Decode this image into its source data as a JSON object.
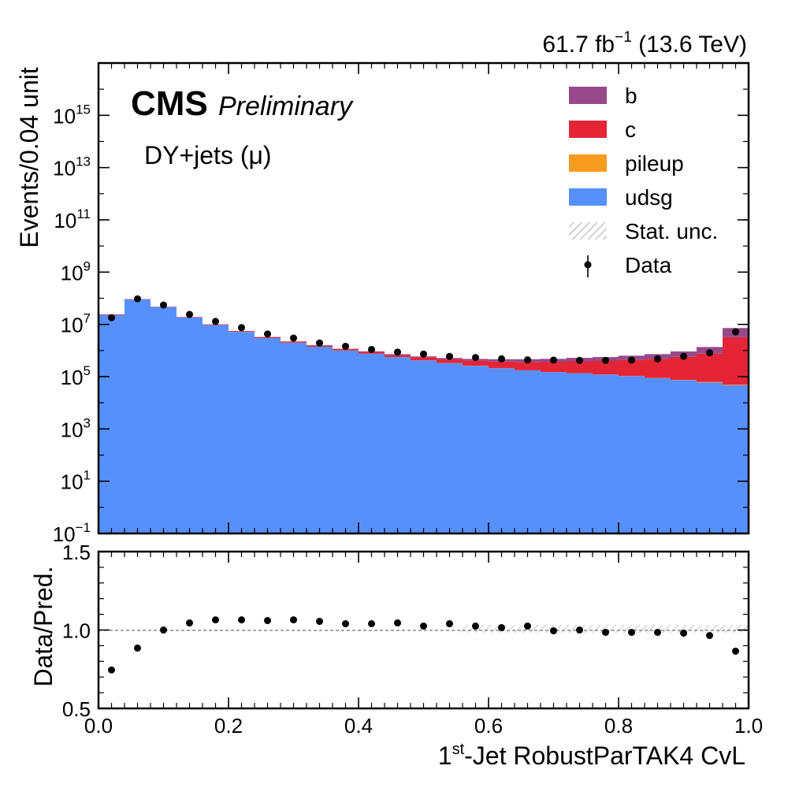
{
  "header": {
    "lumi_value": "61.7 fb",
    "lumi_exp": "−1",
    "energy": " (13.6 TeV)"
  },
  "labels": {
    "cms": "CMS",
    "preliminary": "Preliminary",
    "channel": "DY+jets (μ)",
    "ylabel_main": "Events/0.04 unit",
    "ylabel_ratio": "Data/Pred.",
    "xlabel_pre": "1",
    "xlabel_sup": "st",
    "xlabel_post": "-Jet RobustParTAK4 CvL"
  },
  "colors": {
    "b": "#964a8b",
    "c": "#e42536",
    "pileup": "#f89c20",
    "udsg": "#5790fc",
    "data": "#000000",
    "stat_unc": "#999999"
  },
  "legend": [
    {
      "key": "b",
      "label": "b",
      "kind": "fill"
    },
    {
      "key": "c",
      "label": "c",
      "kind": "fill"
    },
    {
      "key": "pileup",
      "label": "pileup",
      "kind": "fill"
    },
    {
      "key": "udsg",
      "label": "udsg",
      "kind": "fill"
    },
    {
      "key": "stat_unc",
      "label": "Stat. unc.",
      "kind": "hatch"
    },
    {
      "key": "data",
      "label": "Data",
      "kind": "point"
    }
  ],
  "chart_data": [
    {
      "type": "area",
      "subtype": "stacked-histogram",
      "xlim": [
        0,
        1
      ],
      "ylim": [
        0.1,
        1e+17
      ],
      "yscale": "log",
      "bin_width": 0.04,
      "bin_edges": [
        0,
        0.04,
        0.08,
        0.12,
        0.16,
        0.2,
        0.24,
        0.28,
        0.32,
        0.36,
        0.4,
        0.44,
        0.48,
        0.52,
        0.56,
        0.6,
        0.64,
        0.68,
        0.72,
        0.76,
        0.8,
        0.84,
        0.88,
        0.92,
        0.96,
        1.0
      ],
      "y_ticks": [
        {
          "value": 0.1,
          "base": "10",
          "exp": "−1"
        },
        {
          "value": 10,
          "base": "10",
          "exp": "1"
        },
        {
          "value": 1000,
          "base": "10",
          "exp": "3"
        },
        {
          "value": 100000,
          "base": "10",
          "exp": "5"
        },
        {
          "value": 10000000,
          "base": "10",
          "exp": "7"
        },
        {
          "value": 1000000000,
          "base": "10",
          "exp": "9"
        },
        {
          "value": 100000000000,
          "base": "10",
          "exp": "11"
        },
        {
          "value": 10000000000000,
          "base": "10",
          "exp": "13"
        },
        {
          "value": 1000000000000000,
          "base": "10",
          "exp": "15"
        }
      ],
      "series": [
        {
          "name": "udsg",
          "values": [
            23000000.0,
            90000000.0,
            46000000.0,
            18500000.0,
            9500000.0,
            5200000.0,
            3000000.0,
            2000000.0,
            1400000.0,
            1000000.0,
            760000.0,
            560000.0,
            420000.0,
            330000.0,
            260000.0,
            210000.0,
            175000.0,
            150000.0,
            135000.0,
            120000.0,
            105000.0,
            88000.0,
            73000.0,
            60000.0,
            47000.0
          ]
        },
        {
          "name": "pileup",
          "values": [
            100000.0,
            300000.0,
            180000.0,
            60000.0,
            30000.0,
            15000.0,
            9000.0,
            6000.0,
            4000.0,
            3000.0,
            2200.0,
            1800.0,
            1500.0,
            1300.0,
            1100.0,
            1000.0,
            900,
            900,
            900,
            900,
            1200.0,
            1600.0,
            2000.0,
            2500.0,
            2000.0
          ]
        },
        {
          "name": "c",
          "values": [
            1000000.0,
            2000000.0,
            1300000.0,
            700000.0,
            500000.0,
            350000.0,
            260000.0,
            200000.0,
            160000.0,
            140000.0,
            130000.0,
            125000.0,
            130000.0,
            135000.0,
            150000.0,
            170000.0,
            190000.0,
            210000.0,
            250000.0,
            280000.0,
            330000.0,
            390000.0,
            500000.0,
            700000.0,
            3200000.0
          ]
        },
        {
          "name": "b",
          "values": [
            300000.0,
            600000.0,
            350000.0,
            150000.0,
            90000.0,
            60000.0,
            45000.0,
            38000.0,
            35000.0,
            35000.0,
            36000.0,
            40000.0,
            45000.0,
            55000.0,
            65000.0,
            80000.0,
            100000.0,
            120000.0,
            140000.0,
            160000.0,
            200000.0,
            250000.0,
            350000.0,
            600000.0,
            4000000.0
          ]
        },
        {
          "name": "Data",
          "values": [
            18000000.0,
            95000000.0,
            55000000.0,
            24000000.0,
            13000000.0,
            7500000.0,
            4300000.0,
            3000000.0,
            1950000.0,
            1450000.0,
            1100000.0,
            870000.0,
            730000.0,
            600000.0,
            540000.0,
            480000.0,
            440000.0,
            430000.0,
            420000.0,
            420000.0,
            430000.0,
            480000.0,
            600000.0,
            820000.0,
            5200000.0
          ]
        }
      ]
    },
    {
      "type": "scatter",
      "ylim": [
        0.5,
        1.5
      ],
      "x": [
        0.02,
        0.06,
        0.1,
        0.14,
        0.18,
        0.22,
        0.26,
        0.3,
        0.34,
        0.38,
        0.42,
        0.46,
        0.5,
        0.54,
        0.58,
        0.62,
        0.66,
        0.7,
        0.74,
        0.78,
        0.82,
        0.86,
        0.9,
        0.94,
        0.98
      ],
      "series": [
        {
          "name": "Data/Pred.",
          "values": [
            0.745,
            0.885,
            1.0,
            1.045,
            1.065,
            1.065,
            1.06,
            1.065,
            1.055,
            1.04,
            1.04,
            1.045,
            1.025,
            1.04,
            1.025,
            1.015,
            1.025,
            0.995,
            1.0,
            0.985,
            0.985,
            0.985,
            0.98,
            0.965,
            0.865
          ]
        }
      ],
      "reference_line": 1.0,
      "x_ticks": [
        "0.0",
        "0.2",
        "0.4",
        "0.6",
        "0.8",
        "1.0"
      ],
      "y_ticks": [
        "0.5",
        "1.0",
        "1.5"
      ]
    }
  ]
}
